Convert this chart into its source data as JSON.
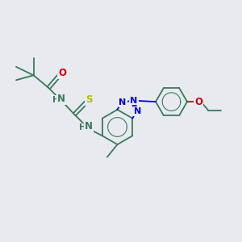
{
  "background_color": "#e8eaf0",
  "fig_width": 3.0,
  "fig_height": 3.0,
  "dpi": 100,
  "xlim": [
    0,
    10
  ],
  "ylim": [
    0,
    10
  ],
  "O_color": "#cc0000",
  "S_color": "#bbbb00",
  "N_color": "#0000dd",
  "C_color": "#3a7a5a",
  "lw": 1.3,
  "fs": 8.5
}
